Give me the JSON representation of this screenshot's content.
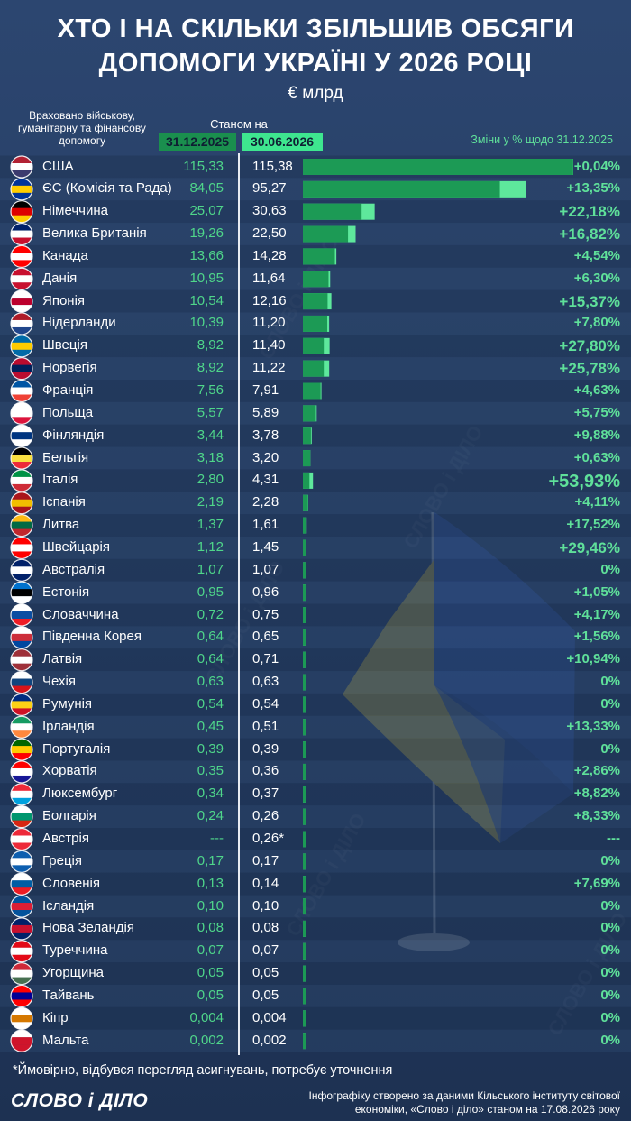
{
  "header": {
    "title_line1": "ХТО І НА СКІЛЬКИ ЗБІЛЬШИВ ОБСЯГИ",
    "title_line2": "ДОПОМОГИ УКРАЇНІ У 2026 РОЦІ",
    "unit": "€ млрд",
    "note_left": "Враховано військову, гуманітарну та фінансову допомогу",
    "as_of_label": "Станом на",
    "date1": "31.12.2025",
    "date2": "30.06.2026",
    "changes_header": "Зміни у % щодо 31.12.2025"
  },
  "footer": {
    "footnote": "*Ймовірно, відбувся перегляд асигнувань, потребує уточнення",
    "logo": "СЛОВО і ДІЛО",
    "source": "Інфографіку створено за даними Кільського інституту світової економіки, «Слово і діло» станом на 17.08.2026 року"
  },
  "colors": {
    "background": "#243a5e",
    "bar_old": "#1c9a55",
    "bar_increase": "#5ee89c",
    "date1_bg": "#1a8f4e",
    "date2_bg": "#3ee68f",
    "change_text": "#5fe09a"
  },
  "chart_data": {
    "type": "bar",
    "orientation": "horizontal",
    "series": [
      {
        "name": "31.12.2025",
        "values": [
          115.33,
          84.05,
          25.07,
          19.26,
          13.66,
          10.95,
          10.54,
          10.39,
          8.92,
          8.92,
          7.56,
          5.57,
          3.44,
          3.18,
          2.8,
          2.19,
          1.37,
          1.12,
          1.07,
          0.95,
          0.72,
          0.64,
          0.64,
          0.63,
          0.54,
          0.45,
          0.39,
          0.35,
          0.34,
          0.24,
          null,
          0.17,
          0.13,
          0.1,
          0.08,
          0.07,
          0.05,
          0.05,
          0.004,
          0.002
        ]
      },
      {
        "name": "30.06.2026",
        "values": [
          115.38,
          95.27,
          30.63,
          22.5,
          14.28,
          11.64,
          12.16,
          11.2,
          11.4,
          11.22,
          7.91,
          5.89,
          3.78,
          3.2,
          4.31,
          2.28,
          1.61,
          1.45,
          1.07,
          0.96,
          0.75,
          0.65,
          0.71,
          0.63,
          0.54,
          0.51,
          0.39,
          0.36,
          0.37,
          0.26,
          0.26,
          0.17,
          0.14,
          0.1,
          0.08,
          0.07,
          0.05,
          0.05,
          0.004,
          0.002
        ]
      }
    ],
    "rows": [
      {
        "country": "США",
        "flag": "us-flag",
        "v1": "115,33",
        "v2": "115,38",
        "change": "+0,04%",
        "size": "n"
      },
      {
        "country": "ЄС (Комісія та Рада)",
        "flag": "eu-flag",
        "v1": "84,05",
        "v2": "95,27",
        "change": "+13,35%",
        "size": "n"
      },
      {
        "country": "Німеччина",
        "flag": "germany-flag",
        "v1": "25,07",
        "v2": "30,63",
        "change": "+22,18%",
        "size": "b"
      },
      {
        "country": "Велика Британія",
        "flag": "uk-flag",
        "v1": "19,26",
        "v2": "22,50",
        "change": "+16,82%",
        "size": "b"
      },
      {
        "country": "Канада",
        "flag": "canada-flag",
        "v1": "13,66",
        "v2": "14,28",
        "change": "+4,54%",
        "size": "n"
      },
      {
        "country": "Данія",
        "flag": "denmark-flag",
        "v1": "10,95",
        "v2": "11,64",
        "change": "+6,30%",
        "size": "n"
      },
      {
        "country": "Японія",
        "flag": "japan-flag",
        "v1": "10,54",
        "v2": "12,16",
        "change": "+15,37%",
        "size": "b"
      },
      {
        "country": "Нідерланди",
        "flag": "netherlands-flag",
        "v1": "10,39",
        "v2": "11,20",
        "change": "+7,80%",
        "size": "n"
      },
      {
        "country": "Швеція",
        "flag": "sweden-flag",
        "v1": "8,92",
        "v2": "11,40",
        "change": "+27,80%",
        "size": "b"
      },
      {
        "country": "Норвегія",
        "flag": "norway-flag",
        "v1": "8,92",
        "v2": "11,22",
        "change": "+25,78%",
        "size": "b"
      },
      {
        "country": "Франція",
        "flag": "france-flag",
        "v1": "7,56",
        "v2": "7,91",
        "change": "+4,63%",
        "size": "n"
      },
      {
        "country": "Польща",
        "flag": "poland-flag",
        "v1": "5,57",
        "v2": "5,89",
        "change": "+5,75%",
        "size": "n"
      },
      {
        "country": "Фінляндія",
        "flag": "finland-flag",
        "v1": "3,44",
        "v2": "3,78",
        "change": "+9,88%",
        "size": "n"
      },
      {
        "country": "Бельгія",
        "flag": "belgium-flag",
        "v1": "3,18",
        "v2": "3,20",
        "change": "+0,63%",
        "size": "n"
      },
      {
        "country": "Італія",
        "flag": "italy-flag",
        "v1": "2,80",
        "v2": "4,31",
        "change": "+53,93%",
        "size": "h"
      },
      {
        "country": "Іспанія",
        "flag": "spain-flag",
        "v1": "2,19",
        "v2": "2,28",
        "change": "+4,11%",
        "size": "n"
      },
      {
        "country": "Литва",
        "flag": "lithuania-flag",
        "v1": "1,37",
        "v2": "1,61",
        "change": "+17,52%",
        "size": "n"
      },
      {
        "country": "Швейцарія",
        "flag": "switzerland-flag",
        "v1": "1,12",
        "v2": "1,45",
        "change": "+29,46%",
        "size": "b"
      },
      {
        "country": "Австралія",
        "flag": "australia-flag",
        "v1": "1,07",
        "v2": "1,07",
        "change": "0%",
        "size": "n"
      },
      {
        "country": "Естонія",
        "flag": "estonia-flag",
        "v1": "0,95",
        "v2": "0,96",
        "change": "+1,05%",
        "size": "n"
      },
      {
        "country": "Словаччина",
        "flag": "slovakia-flag",
        "v1": "0,72",
        "v2": "0,75",
        "change": "+4,17%",
        "size": "n"
      },
      {
        "country": "Південна Корея",
        "flag": "south-korea-flag",
        "v1": "0,64",
        "v2": "0,65",
        "change": "+1,56%",
        "size": "n"
      },
      {
        "country": "Латвія",
        "flag": "latvia-flag",
        "v1": "0,64",
        "v2": "0,71",
        "change": "+10,94%",
        "size": "n"
      },
      {
        "country": "Чехія",
        "flag": "czechia-flag",
        "v1": "0,63",
        "v2": "0,63",
        "change": "0%",
        "size": "n"
      },
      {
        "country": "Румунія",
        "flag": "romania-flag",
        "v1": "0,54",
        "v2": "0,54",
        "change": "0%",
        "size": "n"
      },
      {
        "country": "Ірландія",
        "flag": "ireland-flag",
        "v1": "0,45",
        "v2": "0,51",
        "change": "+13,33%",
        "size": "n"
      },
      {
        "country": "Португалія",
        "flag": "portugal-flag",
        "v1": "0,39",
        "v2": "0,39",
        "change": "0%",
        "size": "n"
      },
      {
        "country": "Хорватія",
        "flag": "croatia-flag",
        "v1": "0,35",
        "v2": "0,36",
        "change": "+2,86%",
        "size": "n"
      },
      {
        "country": "Люксембург",
        "flag": "luxembourg-flag",
        "v1": "0,34",
        "v2": "0,37",
        "change": "+8,82%",
        "size": "n"
      },
      {
        "country": "Болгарія",
        "flag": "bulgaria-flag",
        "v1": "0,24",
        "v2": "0,26",
        "change": "+8,33%",
        "size": "n"
      },
      {
        "country": "Австрія",
        "flag": "austria-flag",
        "v1": "---",
        "v2": "0,26*",
        "change": "---",
        "size": "n"
      },
      {
        "country": "Греція",
        "flag": "greece-flag",
        "v1": "0,17",
        "v2": "0,17",
        "change": "0%",
        "size": "n"
      },
      {
        "country": "Словенія",
        "flag": "slovenia-flag",
        "v1": "0,13",
        "v2": "0,14",
        "change": "+7,69%",
        "size": "n"
      },
      {
        "country": "Ісландія",
        "flag": "iceland-flag",
        "v1": "0,10",
        "v2": "0,10",
        "change": "0%",
        "size": "n"
      },
      {
        "country": "Нова Зеландія",
        "flag": "new-zealand-flag",
        "v1": "0,08",
        "v2": "0,08",
        "change": "0%",
        "size": "n"
      },
      {
        "country": "Туреччина",
        "flag": "turkey-flag",
        "v1": "0,07",
        "v2": "0,07",
        "change": "0%",
        "size": "n"
      },
      {
        "country": "Угорщина",
        "flag": "hungary-flag",
        "v1": "0,05",
        "v2": "0,05",
        "change": "0%",
        "size": "n"
      },
      {
        "country": "Тайвань",
        "flag": "taiwan-flag",
        "v1": "0,05",
        "v2": "0,05",
        "change": "0%",
        "size": "n"
      },
      {
        "country": "Кіпр",
        "flag": "cyprus-flag",
        "v1": "0,004",
        "v2": "0,004",
        "change": "0%",
        "size": "n"
      },
      {
        "country": "Мальта",
        "flag": "malta-flag",
        "v1": "0,002",
        "v2": "0,002",
        "change": "0%",
        "size": "n"
      }
    ]
  }
}
